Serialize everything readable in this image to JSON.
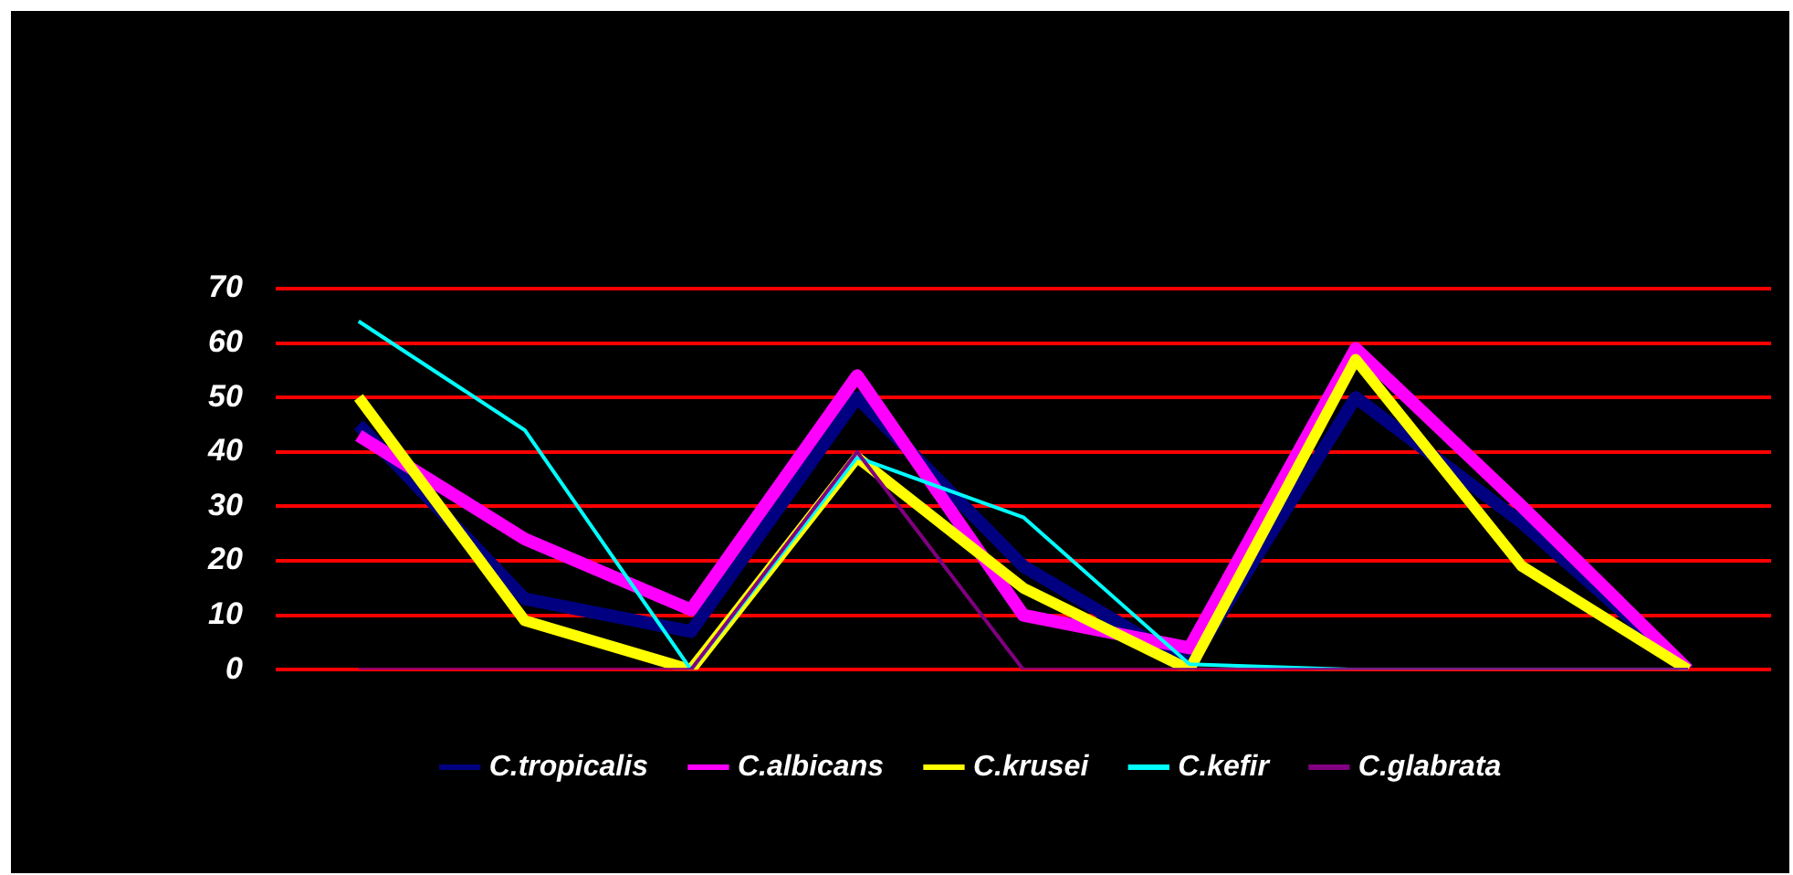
{
  "chart_data": {
    "type": "line",
    "categories": [
      null,
      null,
      null,
      null,
      null,
      null,
      null,
      null,
      null
    ],
    "series": [
      {
        "name": "C.tropicalis",
        "color": "#000080",
        "values": [
          45,
          13,
          7,
          50,
          19,
          1,
          50,
          27,
          0
        ]
      },
      {
        "name": "C.albicans",
        "color": "#ff00ff",
        "values": [
          43,
          24,
          11,
          54,
          10,
          4,
          59,
          30,
          0
        ]
      },
      {
        "name": "C.krusei",
        "color": "#ffff00",
        "values": [
          50,
          9,
          0,
          39,
          15,
          0,
          57,
          19,
          0
        ]
      },
      {
        "name": "C.kefir",
        "color": "#00ffff",
        "values": [
          64,
          44,
          0,
          39,
          28,
          1,
          0,
          0,
          0
        ]
      },
      {
        "name": "C.glabrata",
        "color": "#800080",
        "values": [
          0,
          0,
          0,
          40,
          0,
          0,
          0,
          0,
          0
        ]
      }
    ],
    "ylim": [
      0,
      70
    ],
    "yticks": [
      0,
      10,
      20,
      30,
      40,
      50,
      60,
      70
    ],
    "grid": "y",
    "legend": "bottom",
    "marker": "none",
    "line_style": "solid"
  }
}
